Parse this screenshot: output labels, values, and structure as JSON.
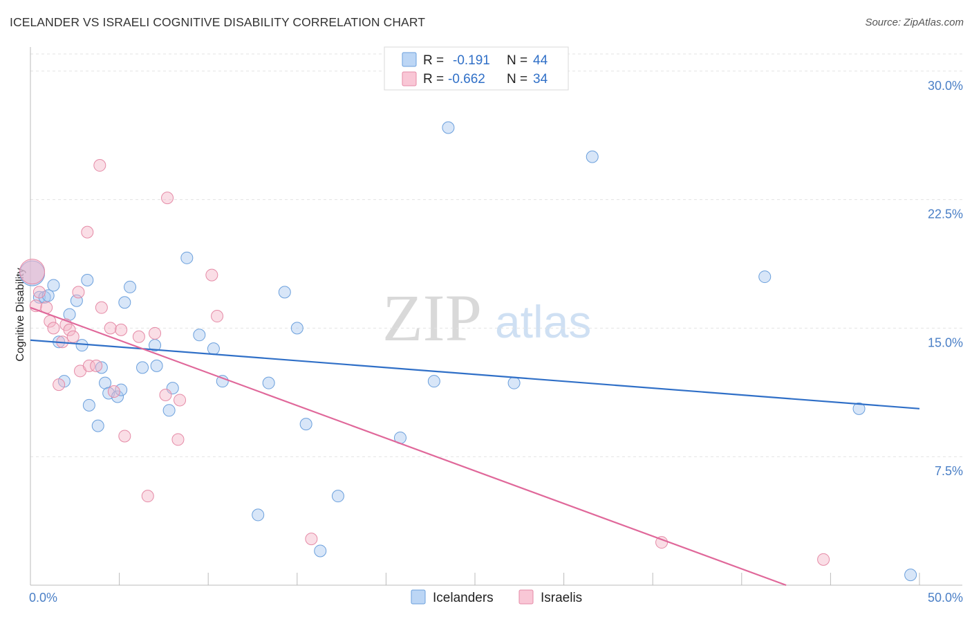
{
  "header": {
    "title": "ICELANDER VS ISRAELI COGNITIVE DISABILITY CORRELATION CHART",
    "source": "Source: ZipAtlas.com"
  },
  "watermark": {
    "zip": "ZIP",
    "atlas": "atlas"
  },
  "legend": {
    "rows": [
      {
        "r_label": "R =",
        "r_value": "-0.191",
        "n_label": "N =",
        "n_value": "44",
        "color": "#a8c8f0"
      },
      {
        "r_label": "R =",
        "r_value": "-0.662",
        "n_label": "N =",
        "n_value": "34",
        "color": "#f5b5c8"
      }
    ]
  },
  "bottom_legend": {
    "items": [
      {
        "label": "Icelanders",
        "color": "#a8c8f0"
      },
      {
        "label": "Israelis",
        "color": "#f5b5c8"
      }
    ]
  },
  "chart_data": {
    "type": "scatter",
    "title": "ICELANDER VS ISRAELI COGNITIVE DISABILITY CORRELATION CHART",
    "xlabel": "",
    "ylabel": "Cognitive Disability",
    "xlim": [
      0,
      50
    ],
    "ylim": [
      0,
      31
    ],
    "x_tick_labels": [
      "0.0%",
      "50.0%"
    ],
    "y_ticks": [
      7.5,
      15.0,
      22.5,
      30.0
    ],
    "y_tick_labels": [
      "7.5%",
      "15.0%",
      "22.5%",
      "30.0%"
    ],
    "grid": true,
    "legend_position": "top-center",
    "series": [
      {
        "name": "Icelanders",
        "color": "#a8c8f0",
        "stroke": "#6a9fdc",
        "trend": {
          "color": "#2f6fc7",
          "x": [
            0,
            50
          ],
          "y": [
            14.3,
            10.3
          ]
        },
        "points": [
          [
            0.1,
            18.2
          ],
          [
            0.5,
            16.8
          ],
          [
            0.8,
            16.8
          ],
          [
            1.0,
            16.9
          ],
          [
            1.3,
            17.5
          ],
          [
            1.6,
            14.2
          ],
          [
            1.9,
            11.9
          ],
          [
            2.2,
            15.8
          ],
          [
            2.6,
            16.6
          ],
          [
            2.9,
            14.0
          ],
          [
            3.2,
            17.8
          ],
          [
            3.3,
            10.5
          ],
          [
            3.8,
            9.3
          ],
          [
            4.0,
            12.7
          ],
          [
            4.2,
            11.8
          ],
          [
            4.4,
            11.2
          ],
          [
            4.9,
            11.0
          ],
          [
            5.1,
            11.4
          ],
          [
            5.3,
            16.5
          ],
          [
            5.6,
            17.4
          ],
          [
            6.3,
            12.7
          ],
          [
            7.0,
            14.0
          ],
          [
            7.1,
            12.8
          ],
          [
            7.8,
            10.2
          ],
          [
            8.0,
            11.5
          ],
          [
            8.8,
            19.1
          ],
          [
            9.5,
            14.6
          ],
          [
            10.3,
            13.8
          ],
          [
            10.8,
            11.9
          ],
          [
            12.8,
            4.1
          ],
          [
            13.4,
            11.8
          ],
          [
            14.3,
            17.1
          ],
          [
            15.0,
            15.0
          ],
          [
            15.5,
            9.4
          ],
          [
            16.3,
            2.0
          ],
          [
            17.3,
            5.2
          ],
          [
            20.8,
            8.6
          ],
          [
            22.7,
            11.9
          ],
          [
            23.5,
            26.7
          ],
          [
            27.2,
            11.8
          ],
          [
            31.6,
            25.0
          ],
          [
            41.3,
            18.0
          ],
          [
            46.6,
            10.3
          ],
          [
            49.5,
            0.6
          ]
        ]
      },
      {
        "name": "Israelis",
        "color": "#f5b5c8",
        "stroke": "#e58aa6",
        "trend": {
          "color": "#e0689a",
          "x": [
            0,
            42.5
          ],
          "y": [
            16.2,
            0.0
          ]
        },
        "points": [
          [
            0.1,
            18.3
          ],
          [
            0.5,
            17.1
          ],
          [
            0.9,
            16.2
          ],
          [
            1.1,
            15.4
          ],
          [
            1.3,
            15.0
          ],
          [
            1.6,
            11.7
          ],
          [
            1.8,
            14.2
          ],
          [
            2.0,
            15.2
          ],
          [
            2.2,
            14.9
          ],
          [
            2.4,
            14.5
          ],
          [
            2.7,
            17.1
          ],
          [
            2.8,
            12.5
          ],
          [
            3.2,
            20.6
          ],
          [
            3.3,
            12.8
          ],
          [
            3.7,
            12.8
          ],
          [
            3.9,
            24.5
          ],
          [
            4.0,
            16.2
          ],
          [
            4.5,
            15.0
          ],
          [
            4.7,
            11.3
          ],
          [
            5.1,
            14.9
          ],
          [
            5.3,
            8.7
          ],
          [
            6.1,
            14.5
          ],
          [
            6.6,
            5.2
          ],
          [
            7.0,
            14.7
          ],
          [
            7.6,
            11.1
          ],
          [
            7.7,
            22.6
          ],
          [
            8.3,
            8.5
          ],
          [
            8.4,
            10.8
          ],
          [
            10.2,
            18.1
          ],
          [
            10.5,
            15.7
          ],
          [
            15.8,
            2.7
          ],
          [
            35.5,
            2.5
          ],
          [
            44.6,
            1.5
          ],
          [
            0.3,
            16.3
          ]
        ]
      }
    ]
  }
}
